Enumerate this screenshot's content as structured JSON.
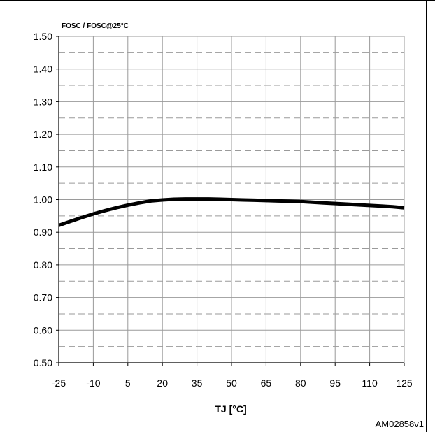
{
  "chart_data": {
    "type": "line",
    "ylabel": "FOSC / FOSC@25°C",
    "xlabel": "TJ [°C]",
    "figure_id": "AM02858v1",
    "xlim": [
      -25,
      125
    ],
    "ylim": [
      0.5,
      1.5
    ],
    "x_ticks": [
      -25,
      -10,
      5,
      20,
      35,
      50,
      65,
      80,
      95,
      110,
      125
    ],
    "x_tick_labels": [
      "-25",
      "-10",
      "5",
      "20",
      "35",
      "50",
      "65",
      "80",
      "95",
      "110",
      "125"
    ],
    "y_ticks": [
      0.5,
      0.6,
      0.7,
      0.8,
      0.9,
      1.0,
      1.1,
      1.2,
      1.3,
      1.4,
      1.5
    ],
    "y_tick_labels": [
      "0.50",
      "0.60",
      "0.70",
      "0.80",
      "0.90",
      "1.00",
      "1.10",
      "1.20",
      "1.30",
      "1.40",
      "1.50"
    ],
    "grid": true,
    "series": [
      {
        "x": [
          -25,
          -20,
          -15,
          -10,
          -5,
          0,
          5,
          10,
          15,
          20,
          25,
          30,
          35,
          40,
          45,
          50,
          55,
          60,
          65,
          70,
          75,
          80,
          85,
          90,
          95,
          100,
          105,
          110,
          115,
          120,
          125
        ],
        "y": [
          0.921,
          0.933,
          0.945,
          0.956,
          0.966,
          0.975,
          0.983,
          0.99,
          0.996,
          0.999,
          1.001,
          1.002,
          1.002,
          1.002,
          1.001,
          1.0,
          0.999,
          0.998,
          0.997,
          0.996,
          0.995,
          0.994,
          0.992,
          0.99,
          0.988,
          0.986,
          0.984,
          0.982,
          0.98,
          0.978,
          0.975
        ],
        "color": "#000000"
      }
    ]
  }
}
